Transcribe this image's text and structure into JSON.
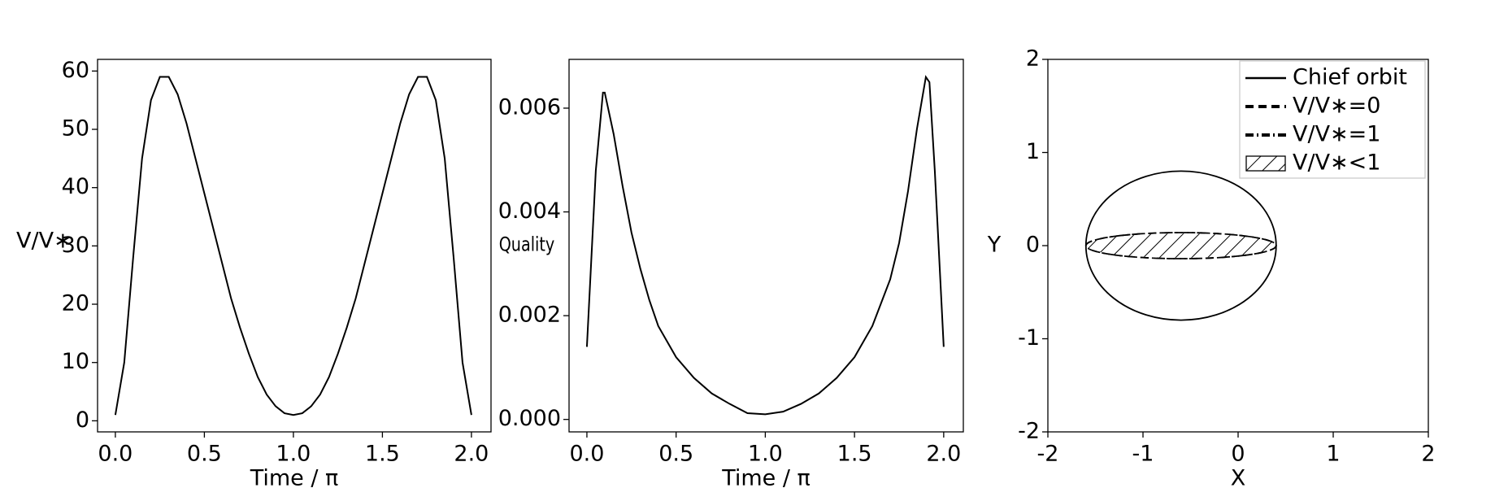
{
  "chart_data": [
    {
      "type": "line",
      "ylabel": "V/V∗",
      "xlabel": "Time / π",
      "color": "#000000",
      "x": [
        0,
        0.05,
        0.1,
        0.15,
        0.2,
        0.25,
        0.3,
        0.35,
        0.4,
        0.45,
        0.5,
        0.55,
        0.6,
        0.65,
        0.7,
        0.75,
        0.8,
        0.85,
        0.9,
        0.95,
        1.0,
        1.05,
        1.1,
        1.15,
        1.2,
        1.25,
        1.3,
        1.35,
        1.4,
        1.45,
        1.5,
        1.55,
        1.6,
        1.65,
        1.7,
        1.75,
        1.8,
        1.85,
        1.9,
        1.95,
        2.0
      ],
      "values": [
        1,
        10,
        28,
        45,
        55,
        59,
        59,
        56,
        51,
        45,
        39,
        33,
        27,
        21,
        16,
        11.5,
        7.5,
        4.5,
        2.5,
        1.3,
        1,
        1.3,
        2.5,
        4.5,
        7.5,
        11.5,
        16,
        21,
        27,
        33,
        39,
        45,
        51,
        56,
        59,
        59,
        55,
        45,
        28,
        10,
        1
      ],
      "xlim": [
        -0.1,
        2.11
      ],
      "ylim": [
        -1.9,
        62
      ],
      "xticks": [
        {
          "value": 0,
          "label": "0.0"
        },
        0.5,
        {
          "value": 1,
          "label": "1.0"
        },
        1.5,
        {
          "value": 2,
          "label": "2.0"
        }
      ],
      "yticks": [
        0,
        10,
        20,
        30,
        40,
        50,
        60
      ]
    },
    {
      "type": "line",
      "ylabel": "Quality",
      "xlabel": "Time / π",
      "color": "#000000",
      "x": [
        0,
        0.05,
        0.09,
        0.1,
        0.15,
        0.2,
        0.25,
        0.3,
        0.35,
        0.4,
        0.5,
        0.6,
        0.7,
        0.8,
        0.9,
        1.0,
        1.1,
        1.2,
        1.3,
        1.4,
        1.5,
        1.6,
        1.7,
        1.75,
        1.8,
        1.85,
        1.9,
        1.92,
        1.95,
        2.0
      ],
      "values": [
        0.0014,
        0.0048,
        0.0063,
        0.0063,
        0.0055,
        0.0045,
        0.0036,
        0.0029,
        0.0023,
        0.0018,
        0.0012,
        0.0008,
        0.0005,
        0.0003,
        0.00012,
        0.0001,
        0.00015,
        0.0003,
        0.0005,
        0.0008,
        0.0012,
        0.0018,
        0.0027,
        0.0034,
        0.0044,
        0.0056,
        0.0066,
        0.0065,
        0.0048,
        0.0014
      ],
      "xlim": [
        -0.1,
        2.11
      ],
      "ylim": [
        -0.00024,
        0.00694
      ],
      "xticks": [
        {
          "value": 0,
          "label": "0.0"
        },
        0.5,
        {
          "value": 1,
          "label": "1.0"
        },
        1.5,
        {
          "value": 2,
          "label": "2.0"
        }
      ],
      "yticks": [
        {
          "value": 0,
          "label": "0.000"
        },
        {
          "value": 0.002,
          "label": "0.002"
        },
        {
          "value": 0.004,
          "label": "0.004"
        },
        {
          "value": 0.006,
          "label": "0.006"
        }
      ]
    },
    {
      "type": "ellipse",
      "xlabel": "X",
      "ylabel": "Y",
      "xlim": [
        -2,
        2
      ],
      "ylim": [
        -2,
        2
      ],
      "xticks": [
        -2,
        -1,
        0,
        1,
        2
      ],
      "yticks": [
        -2,
        -1,
        0,
        1,
        2
      ],
      "legend": "upper right",
      "series": [
        {
          "name": "Chief orbit",
          "style": "solid",
          "center": [
            -0.6,
            0
          ],
          "rx": 1.0,
          "ry": 0.8
        },
        {
          "name": "V/V∗=0",
          "style": "dashed",
          "center": [
            -0.6,
            0
          ],
          "rx": 1.0,
          "ry": 0.14
        },
        {
          "name": "V/V∗=1",
          "style": "dashdot",
          "center": [
            -0.6,
            0
          ],
          "rx": 1.0,
          "ry": 0.14
        },
        {
          "name": "V/V∗<1",
          "style": "hatch",
          "center": [
            -0.6,
            0
          ],
          "rx": 1.0,
          "ry": 0.13
        }
      ]
    }
  ]
}
